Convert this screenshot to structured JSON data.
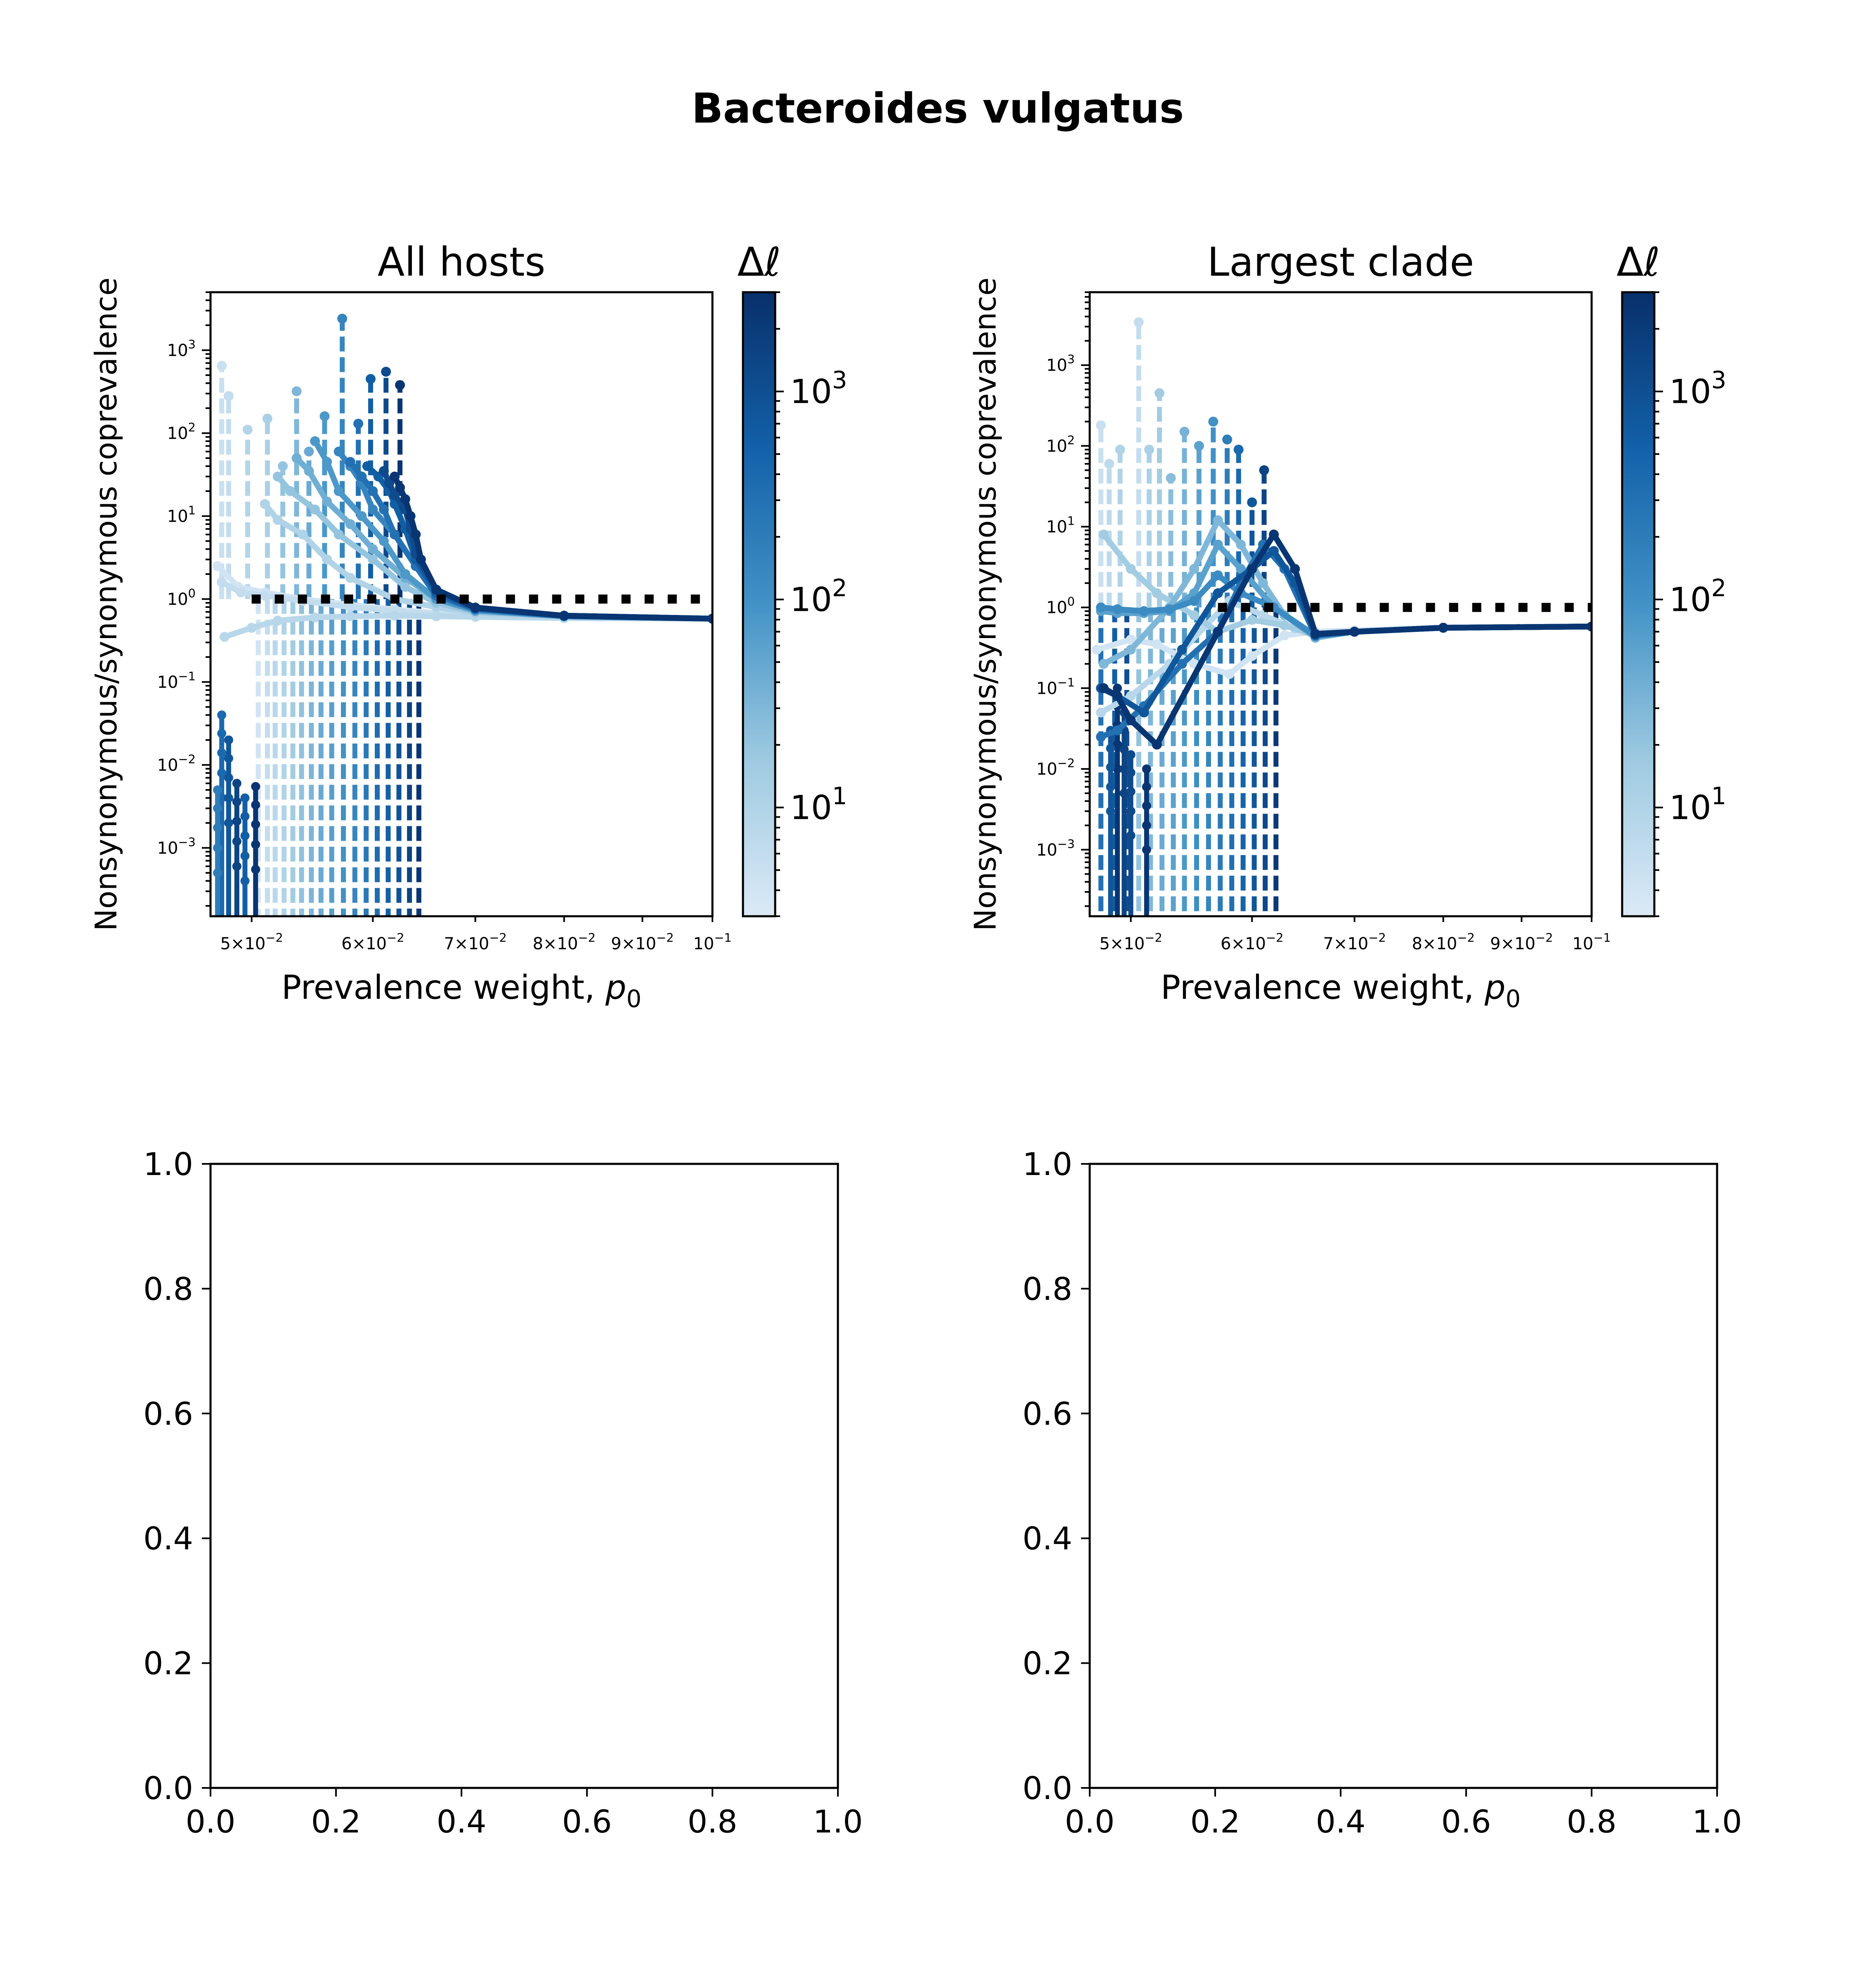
{
  "figure": {
    "suptitle": "Bacteroides vulgatus"
  },
  "colorbar": {
    "label": "Δℓ",
    "ticks": [
      "10^1",
      "10^2",
      "10^3"
    ],
    "scale": "log",
    "range": [
      3,
      3000
    ],
    "colormap": [
      "#dbe9f6",
      "#9ecae1",
      "#4292c6",
      "#1361a9",
      "#08306b"
    ]
  },
  "reference_color": "#000000",
  "chart_data": [
    {
      "panel": "all-hosts",
      "type": "line",
      "title": "All hosts",
      "xlabel": "Prevalence weight, p0",
      "ylabel": "Nonsynonymous/synonymous coprevalence",
      "xscale": "log",
      "yscale": "log",
      "xlim": [
        0.047,
        0.1
      ],
      "ylim": [
        0.00015,
        5000
      ],
      "x_ticks": [
        "5×10^-2",
        "6×10^-2",
        "7×10^-2",
        "8×10^-2",
        "9×10^-2",
        "10^-1"
      ],
      "y_ticks": [
        "10^-3",
        "10^-2",
        "10^-1",
        "10^0",
        "10^1",
        "10^2",
        "10^3"
      ],
      "reference_line": {
        "y": 1.0,
        "style": "dotted",
        "x_from": 0.05
      },
      "curves": [
        {
          "dl": 4,
          "x": [
            0.0475,
            0.049,
            0.051,
            0.054,
            0.058,
            0.062,
            0.066,
            0.07,
            0.08,
            0.1
          ],
          "y": [
            2.5,
            1.4,
            1.2,
            1.0,
            0.85,
            0.75,
            0.68,
            0.62,
            0.59,
            0.58
          ]
        },
        {
          "dl": 6,
          "x": [
            0.0478,
            0.0492,
            0.051,
            0.054,
            0.058,
            0.062,
            0.066,
            0.07,
            0.08,
            0.1
          ],
          "y": [
            1.6,
            1.2,
            1.1,
            0.95,
            0.8,
            0.72,
            0.65,
            0.62,
            0.59,
            0.58
          ]
        },
        {
          "dl": 8,
          "x": [
            0.048,
            0.05,
            0.052,
            0.055,
            0.058,
            0.062,
            0.066,
            0.07,
            0.08,
            0.1
          ],
          "y": [
            0.35,
            0.45,
            0.55,
            0.6,
            0.62,
            0.63,
            0.62,
            0.61,
            0.59,
            0.58
          ]
        },
        {
          "dl": 10,
          "x": [
            0.051,
            0.052,
            0.054,
            0.056,
            0.058,
            0.062,
            0.066,
            0.07,
            0.08,
            0.1
          ],
          "y": [
            14,
            9,
            6,
            3,
            1.8,
            1.0,
            0.8,
            0.68,
            0.61,
            0.58
          ]
        },
        {
          "dl": 20,
          "x": [
            0.052,
            0.053,
            0.055,
            0.057,
            0.06,
            0.063,
            0.066,
            0.07,
            0.08,
            0.1
          ],
          "y": [
            30,
            20,
            12,
            6,
            3,
            1.4,
            0.9,
            0.7,
            0.62,
            0.58
          ]
        },
        {
          "dl": 40,
          "x": [
            0.0535,
            0.0545,
            0.056,
            0.058,
            0.06,
            0.063,
            0.066,
            0.07,
            0.08,
            0.1
          ],
          "y": [
            50,
            35,
            15,
            8,
            4,
            1.8,
            1.0,
            0.72,
            0.62,
            0.58
          ]
        },
        {
          "dl": 80,
          "x": [
            0.055,
            0.056,
            0.057,
            0.059,
            0.061,
            0.063,
            0.066,
            0.07,
            0.08,
            0.1
          ],
          "y": [
            80,
            45,
            20,
            10,
            5,
            2,
            1.0,
            0.73,
            0.62,
            0.58
          ]
        },
        {
          "dl": 150,
          "x": [
            0.057,
            0.058,
            0.059,
            0.06,
            0.062,
            0.064,
            0.066,
            0.07,
            0.08,
            0.1
          ],
          "y": [
            60,
            40,
            25,
            12,
            6,
            2.5,
            1.1,
            0.75,
            0.62,
            0.58
          ]
        },
        {
          "dl": 300,
          "x": [
            0.058,
            0.059,
            0.06,
            0.061,
            0.062,
            0.064,
            0.066,
            0.07,
            0.08,
            0.1
          ],
          "y": [
            45,
            30,
            20,
            12,
            6,
            2.5,
            1.1,
            0.76,
            0.63,
            0.58
          ]
        },
        {
          "dl": 600,
          "x": [
            0.0595,
            0.0605,
            0.0615,
            0.062,
            0.063,
            0.064,
            0.066,
            0.07,
            0.08,
            0.1
          ],
          "y": [
            40,
            30,
            20,
            14,
            7,
            3,
            1.2,
            0.77,
            0.63,
            0.58
          ]
        },
        {
          "dl": 1200,
          "x": [
            0.061,
            0.0615,
            0.062,
            0.063,
            0.0635,
            0.064,
            0.066,
            0.07,
            0.08,
            0.1
          ],
          "y": [
            35,
            25,
            18,
            12,
            7,
            3.5,
            1.3,
            0.78,
            0.63,
            0.58
          ]
        },
        {
          "dl": 2500,
          "x": [
            0.062,
            0.0625,
            0.063,
            0.0635,
            0.064,
            0.0645,
            0.066,
            0.07,
            0.08,
            0.1
          ],
          "y": [
            30,
            22,
            16,
            10,
            6,
            3,
            1.3,
            0.79,
            0.63,
            0.58
          ]
        }
      ],
      "spikes": [
        {
          "dl": 5,
          "x": 0.0478,
          "y": 650
        },
        {
          "dl": 6,
          "x": 0.0483,
          "y": 280
        },
        {
          "dl": 9,
          "x": 0.0497,
          "y": 110
        },
        {
          "dl": 12,
          "x": 0.0512,
          "y": 150
        },
        {
          "dl": 20,
          "x": 0.0524,
          "y": 40
        },
        {
          "dl": 30,
          "x": 0.0535,
          "y": 320
        },
        {
          "dl": 45,
          "x": 0.0545,
          "y": 60
        },
        {
          "dl": 80,
          "x": 0.0558,
          "y": 160
        },
        {
          "dl": 150,
          "x": 0.0573,
          "y": 2400
        },
        {
          "dl": 300,
          "x": 0.0587,
          "y": 130
        },
        {
          "dl": 600,
          "x": 0.0598,
          "y": 450
        },
        {
          "dl": 1200,
          "x": 0.0612,
          "y": 550
        },
        {
          "dl": 2500,
          "x": 0.0625,
          "y": 380
        }
      ],
      "drops": [
        {
          "dl": 4,
          "x": 0.0505
        },
        {
          "dl": 6,
          "x": 0.0512
        },
        {
          "dl": 8,
          "x": 0.0518
        },
        {
          "dl": 10,
          "x": 0.0525
        },
        {
          "dl": 15,
          "x": 0.0532
        },
        {
          "dl": 22,
          "x": 0.0539
        },
        {
          "dl": 32,
          "x": 0.0547
        },
        {
          "dl": 45,
          "x": 0.0555
        },
        {
          "dl": 65,
          "x": 0.0564
        },
        {
          "dl": 100,
          "x": 0.0574
        },
        {
          "dl": 150,
          "x": 0.0584
        },
        {
          "dl": 230,
          "x": 0.0594
        },
        {
          "dl": 350,
          "x": 0.0604
        },
        {
          "dl": 550,
          "x": 0.0614
        },
        {
          "dl": 900,
          "x": 0.0624
        },
        {
          "dl": 1500,
          "x": 0.0634
        },
        {
          "dl": 2500,
          "x": 0.0643
        }
      ],
      "low_points": [
        {
          "dl": 400,
          "x": 0.0478,
          "y": 0.04
        },
        {
          "dl": 800,
          "x": 0.0483,
          "y": 0.02
        },
        {
          "dl": 200,
          "x": 0.0475,
          "y": 0.005
        },
        {
          "dl": 1500,
          "x": 0.0489,
          "y": 0.006
        },
        {
          "dl": 2500,
          "x": 0.0503,
          "y": 0.0055
        },
        {
          "dl": 600,
          "x": 0.0495,
          "y": 0.004
        }
      ]
    },
    {
      "panel": "largest-clade",
      "type": "line",
      "title": "Largest clade",
      "xlabel": "Prevalence weight, p0",
      "ylabel": "Nonsynonymous/synonymous coprevalence",
      "xscale": "log",
      "yscale": "log",
      "xlim": [
        0.047,
        0.1
      ],
      "ylim": [
        0.00015,
        8000
      ],
      "x_ticks": [
        "5×10^-2",
        "6×10^-2",
        "7×10^-2",
        "8×10^-2",
        "9×10^-2",
        "10^-1"
      ],
      "y_ticks": [
        "10^-3",
        "10^-2",
        "10^-1",
        "10^0",
        "10^1",
        "10^2",
        "10^3"
      ],
      "reference_line": {
        "y": 1.0,
        "style": "dotted",
        "x_from": 0.057
      },
      "curves": [
        {
          "dl": 4,
          "x": [
            0.0475,
            0.05,
            0.052,
            0.055,
            0.058,
            0.06,
            0.063,
            0.066,
            0.07,
            0.08,
            0.1
          ],
          "y": [
            0.3,
            0.4,
            0.35,
            0.2,
            0.15,
            0.25,
            0.45,
            0.5,
            0.52,
            0.56,
            0.58
          ]
        },
        {
          "dl": 8,
          "x": [
            0.0478,
            0.05,
            0.053,
            0.056,
            0.058,
            0.061,
            0.064,
            0.066,
            0.07,
            0.08,
            0.1
          ],
          "y": [
            0.05,
            0.08,
            0.2,
            0.6,
            1.2,
            0.8,
            0.55,
            0.45,
            0.5,
            0.56,
            0.58
          ]
        },
        {
          "dl": 15,
          "x": [
            0.048,
            0.05,
            0.052,
            0.055,
            0.057,
            0.06,
            0.063,
            0.066,
            0.07,
            0.08,
            0.1
          ],
          "y": [
            8,
            3,
            1.5,
            0.8,
            0.5,
            0.7,
            0.6,
            0.45,
            0.5,
            0.56,
            0.58
          ]
        },
        {
          "dl": 30,
          "x": [
            0.048,
            0.05,
            0.053,
            0.055,
            0.057,
            0.059,
            0.061,
            0.063,
            0.066,
            0.07,
            0.08,
            0.1
          ],
          "y": [
            0.2,
            0.3,
            1.0,
            3,
            12,
            6,
            2,
            0.8,
            0.42,
            0.5,
            0.56,
            0.58
          ]
        },
        {
          "dl": 60,
          "x": [
            0.0478,
            0.049,
            0.051,
            0.053,
            0.055,
            0.057,
            0.059,
            0.062,
            0.066,
            0.07,
            0.08,
            0.1
          ],
          "y": [
            0.9,
            0.85,
            0.85,
            0.9,
            1.5,
            6,
            3,
            1.0,
            0.45,
            0.5,
            0.56,
            0.58
          ]
        },
        {
          "dl": 120,
          "x": [
            0.0478,
            0.049,
            0.051,
            0.053,
            0.055,
            0.057,
            0.059,
            0.062,
            0.066,
            0.07,
            0.08,
            0.1
          ],
          "y": [
            1.0,
            0.95,
            0.9,
            0.95,
            1.2,
            2.5,
            1.5,
            1.0,
            0.44,
            0.5,
            0.56,
            0.58
          ]
        },
        {
          "dl": 300,
          "x": [
            0.0478,
            0.049,
            0.051,
            0.054,
            0.057,
            0.059,
            0.061,
            0.063,
            0.066,
            0.07,
            0.08,
            0.1
          ],
          "y": [
            0.025,
            0.03,
            0.06,
            0.2,
            0.5,
            2,
            6,
            3,
            0.45,
            0.5,
            0.56,
            0.58
          ]
        },
        {
          "dl": 800,
          "x": [
            0.0478,
            0.049,
            0.051,
            0.054,
            0.057,
            0.06,
            0.062,
            0.064,
            0.066,
            0.07,
            0.08,
            0.1
          ],
          "y": [
            0.1,
            0.08,
            0.05,
            0.3,
            1.5,
            3,
            5,
            2,
            0.46,
            0.5,
            0.56,
            0.58
          ]
        },
        {
          "dl": 2500,
          "x": [
            0.048,
            0.049,
            0.05,
            0.052,
            0.057,
            0.06,
            0.062,
            0.064,
            0.066,
            0.07,
            0.08,
            0.1
          ],
          "y": [
            0.1,
            0.08,
            0.04,
            0.02,
            0.5,
            3,
            8,
            3,
            0.47,
            0.5,
            0.56,
            0.58
          ]
        }
      ],
      "spikes": [
        {
          "dl": 5,
          "x": 0.0478,
          "y": 180
        },
        {
          "dl": 7,
          "x": 0.0484,
          "y": 60
        },
        {
          "dl": 10,
          "x": 0.0492,
          "y": 90
        },
        {
          "dl": 6,
          "x": 0.0506,
          "y": 3400
        },
        {
          "dl": 12,
          "x": 0.0514,
          "y": 90
        },
        {
          "dl": 15,
          "x": 0.0522,
          "y": 450
        },
        {
          "dl": 25,
          "x": 0.0531,
          "y": 40
        },
        {
          "dl": 35,
          "x": 0.0542,
          "y": 150
        },
        {
          "dl": 60,
          "x": 0.0554,
          "y": 100
        },
        {
          "dl": 100,
          "x": 0.0566,
          "y": 200
        },
        {
          "dl": 200,
          "x": 0.0578,
          "y": 120
        },
        {
          "dl": 400,
          "x": 0.0588,
          "y": 90
        },
        {
          "dl": 800,
          "x": 0.06,
          "y": 20
        },
        {
          "dl": 1500,
          "x": 0.0611,
          "y": 50
        }
      ],
      "drops": [
        {
          "dl": 300,
          "x": 0.0478
        },
        {
          "dl": 600,
          "x": 0.0488
        },
        {
          "dl": 1000,
          "x": 0.0497
        },
        {
          "dl": 20,
          "x": 0.0506
        },
        {
          "dl": 30,
          "x": 0.0515
        },
        {
          "dl": 45,
          "x": 0.0524
        },
        {
          "dl": 60,
          "x": 0.0533
        },
        {
          "dl": 80,
          "x": 0.0542
        },
        {
          "dl": 110,
          "x": 0.0552
        },
        {
          "dl": 150,
          "x": 0.0562
        },
        {
          "dl": 220,
          "x": 0.0572
        },
        {
          "dl": 330,
          "x": 0.0582
        },
        {
          "dl": 500,
          "x": 0.0592
        },
        {
          "dl": 800,
          "x": 0.0602
        },
        {
          "dl": 1300,
          "x": 0.0612
        },
        {
          "dl": 2200,
          "x": 0.0622
        }
      ],
      "low_points": [
        {
          "dl": 2500,
          "x": 0.049,
          "y": 0.1
        },
        {
          "dl": 1500,
          "x": 0.0495,
          "y": 0.05
        },
        {
          "dl": 800,
          "x": 0.0485,
          "y": 0.03
        },
        {
          "dl": 2500,
          "x": 0.0512,
          "y": 0.01
        },
        {
          "dl": 1200,
          "x": 0.05,
          "y": 0.015
        }
      ]
    },
    {
      "panel": "empty-left",
      "type": "line",
      "xlim": [
        0,
        1
      ],
      "ylim": [
        0,
        1
      ],
      "x_ticks": [
        "0.0",
        "0.2",
        "0.4",
        "0.6",
        "0.8",
        "1.0"
      ],
      "y_ticks": [
        "0.0",
        "0.2",
        "0.4",
        "0.6",
        "0.8",
        "1.0"
      ],
      "series": []
    },
    {
      "panel": "empty-right",
      "type": "line",
      "xlim": [
        0,
        1
      ],
      "ylim": [
        0,
        1
      ],
      "x_ticks": [
        "0.0",
        "0.2",
        "0.4",
        "0.6",
        "0.8",
        "1.0"
      ],
      "y_ticks": [
        "0.0",
        "0.2",
        "0.4",
        "0.6",
        "0.8",
        "1.0"
      ],
      "series": []
    }
  ]
}
